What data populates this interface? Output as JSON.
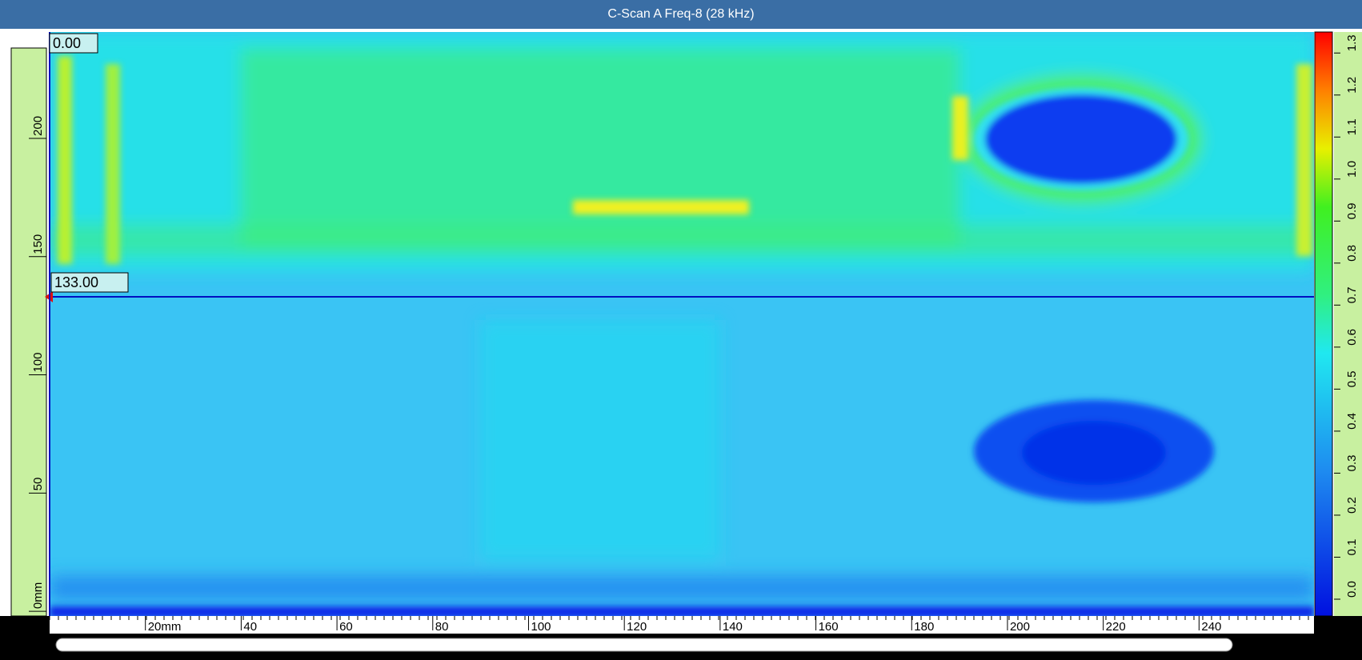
{
  "window": {
    "title": "C-Scan A Freq-8 (28 kHz)"
  },
  "scan": {
    "xlim": [
      0,
      264
    ],
    "xticks": [
      {
        "value": 20,
        "label": "20mm"
      },
      40,
      60,
      80,
      100,
      120,
      140,
      160,
      180,
      200,
      220,
      240
    ],
    "ylim": [
      -2,
      245
    ],
    "yticks": [
      {
        "value": 0,
        "label": "0mm"
      },
      50,
      100,
      150,
      200
    ],
    "cursor_x": {
      "value": 0,
      "label": "0.00"
    },
    "cursor_y": {
      "value": 133,
      "label": "133.00"
    },
    "color_scale": {
      "lim": [
        -0.04,
        1.35
      ],
      "ticks": [
        {
          "value": 0,
          "label": "0.0"
        },
        0.1,
        0.2,
        0.3,
        0.4,
        0.5,
        0.6,
        0.7,
        0.8,
        0.9,
        {
          "value": 1,
          "label": "1.0"
        },
        1.1,
        1.2,
        1.3
      ]
    }
  }
}
